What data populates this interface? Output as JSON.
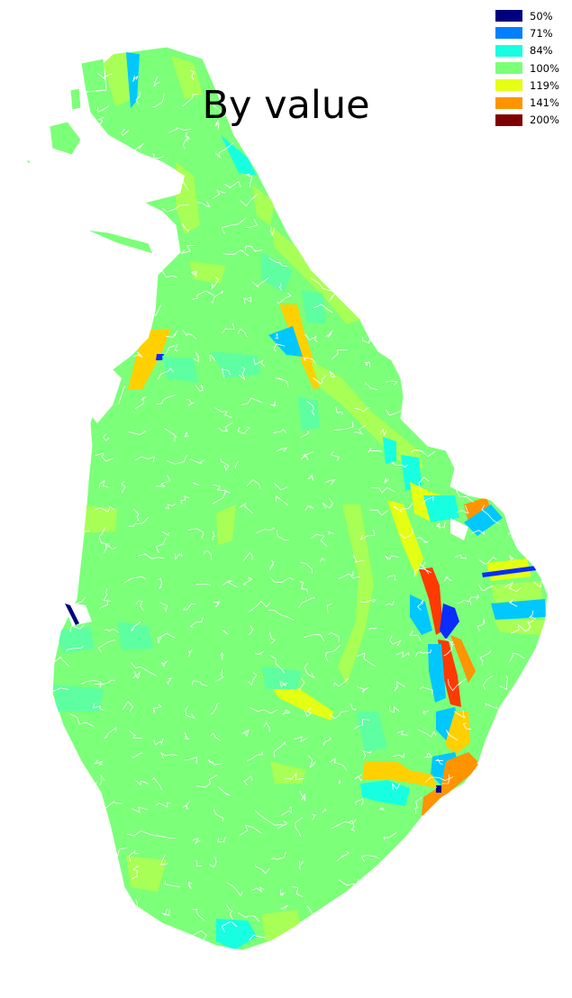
{
  "map": {
    "title": "By value",
    "legend": [
      {
        "label": "50%",
        "color": "#00007f"
      },
      {
        "label": "71%",
        "color": "#0080ff"
      },
      {
        "label": "84%",
        "color": "#17ffe0"
      },
      {
        "label": "100%",
        "color": "#7cff79"
      },
      {
        "label": "119%",
        "color": "#e4ff13"
      },
      {
        "label": "141%",
        "color": "#ff9400"
      },
      {
        "label": "200%",
        "color": "#7f0000"
      }
    ],
    "region_colors": {
      "base": "#7cff79",
      "light_green": "#a8ff55",
      "teal_green": "#5effa0",
      "cyan": "#17ffe0",
      "light_blue": "#00c8ff",
      "blue": "#0a2cff",
      "navy": "#00007f",
      "yellow": "#e4ff13",
      "gold": "#ffd000",
      "orange": "#ff9400",
      "red": "#ff3a00"
    }
  }
}
